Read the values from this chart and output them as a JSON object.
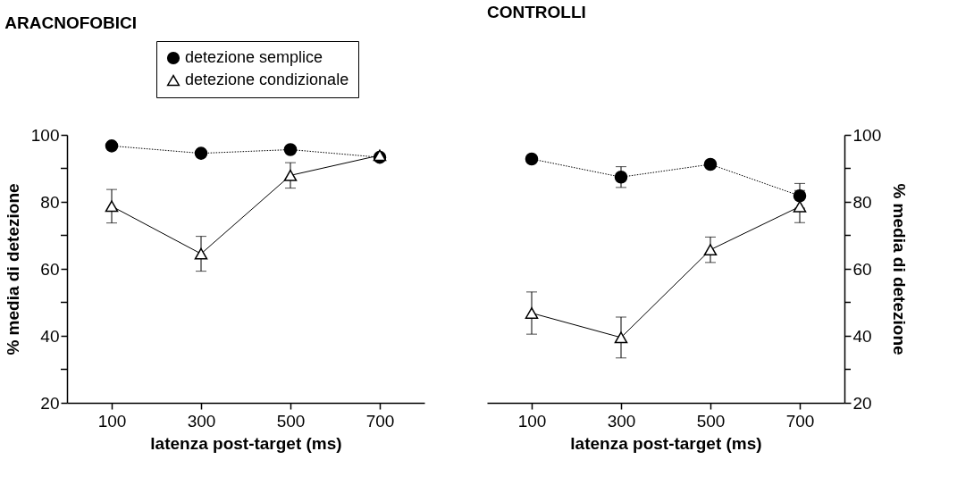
{
  "chart_data": [
    {
      "type": "line",
      "title": "ARACNOFOBICI",
      "xlabel": "latenza post-target (ms)",
      "ylabel": "% media di detezione",
      "categories": [
        "100",
        "300",
        "500",
        "700"
      ],
      "series": [
        {
          "name": "detezione semplice",
          "color": "#000000",
          "marker": "circle",
          "line_style": "dotted",
          "values": [
            96.7,
            94.5,
            95.6,
            93.3
          ],
          "errors": [
            null,
            null,
            null,
            null
          ]
        },
        {
          "name": "detezione condizionale",
          "color": "#000000",
          "marker": "triangle",
          "line_style": "solid",
          "values": [
            78.7,
            64.5,
            87.9,
            93.9
          ],
          "errors": [
            5,
            5.2,
            3.8,
            null
          ]
        }
      ],
      "ylim": [
        20,
        100
      ],
      "yticks": [
        20,
        {
          "value": 30,
          "label": null
        },
        40,
        {
          "value": 50,
          "label": null
        },
        60,
        {
          "value": 70,
          "label": null
        },
        80,
        {
          "value": 90,
          "label": null
        },
        100
      ],
      "grid": false,
      "legend": "top"
    },
    {
      "type": "line",
      "title": "CONTROLLI",
      "xlabel": "latenza post-target (ms)",
      "ylabel": "% media di detezione",
      "categories": [
        "100",
        "300",
        "500",
        "700"
      ],
      "series": [
        {
          "color": "#000000",
          "marker": "circle",
          "line_style": "dotted",
          "values": [
            92.8,
            87.4,
            91.2,
            81.8
          ],
          "errors": [
            null,
            3.1,
            null,
            3.7
          ]
        },
        {
          "color": "#000000",
          "marker": "triangle",
          "line_style": "solid",
          "values": [
            46.8,
            39.5,
            65.7,
            78.6
          ],
          "errors": [
            6.3,
            6.1,
            3.8,
            4.8
          ]
        }
      ],
      "ylim": [
        20,
        100
      ],
      "yticks": [
        20,
        {
          "value": 30,
          "label": null
        },
        40,
        {
          "value": 50,
          "label": null
        },
        60,
        {
          "value": 70,
          "label": null
        },
        80,
        {
          "value": 90,
          "label": null
        },
        100
      ],
      "grid": false
    }
  ]
}
